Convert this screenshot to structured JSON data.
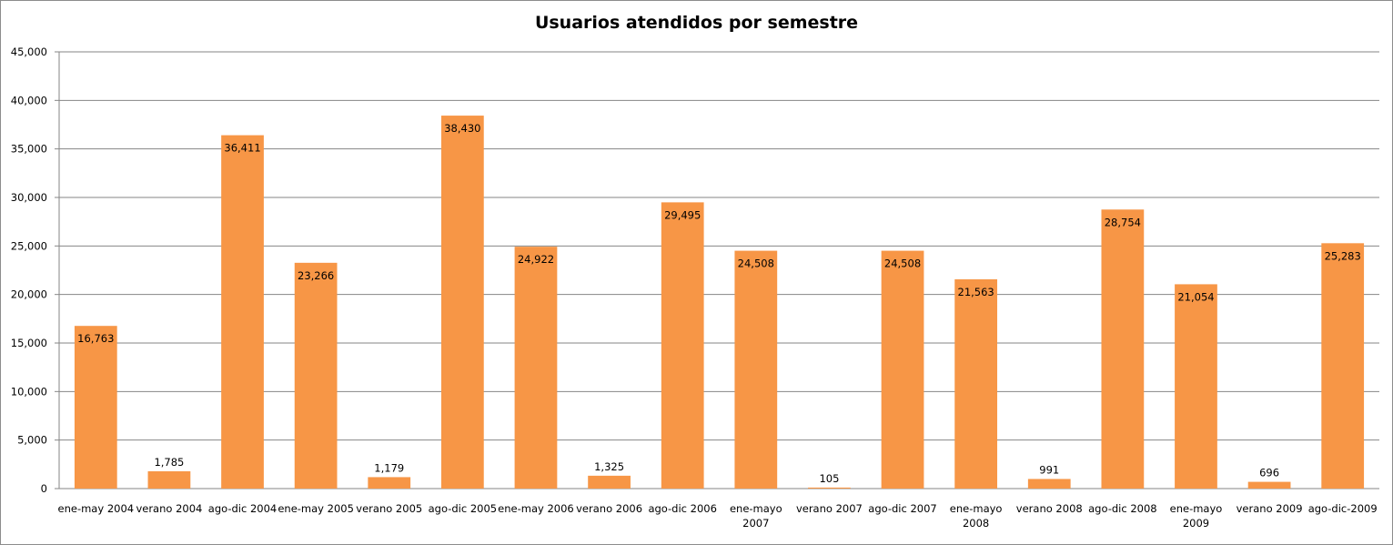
{
  "chart_data": {
    "type": "bar",
    "title": "Usuarios atendidos por semestre",
    "xlabel": "",
    "ylabel": "",
    "ylim": [
      0,
      45000
    ],
    "ytick_step": 5000,
    "ytick_labels": [
      "0",
      "5,000",
      "10,000",
      "15,000",
      "20,000",
      "25,000",
      "30,000",
      "35,000",
      "40,000",
      "45,000"
    ],
    "grid": true,
    "legend": "none",
    "bar_color": "#f79646",
    "categories": [
      [
        "ene-may 2004"
      ],
      [
        "verano 2004"
      ],
      [
        "ago-dic 2004"
      ],
      [
        "ene-may 2005"
      ],
      [
        "verano 2005"
      ],
      [
        "ago-dic 2005"
      ],
      [
        "ene-may 2006"
      ],
      [
        "verano 2006"
      ],
      [
        "ago-dic 2006"
      ],
      [
        "ene-mayo",
        "2007"
      ],
      [
        "verano 2007"
      ],
      [
        "ago-dic 2007"
      ],
      [
        "ene-mayo",
        "2008"
      ],
      [
        "verano 2008"
      ],
      [
        "ago-dic 2008"
      ],
      [
        "ene-mayo",
        "2009"
      ],
      [
        "verano 2009"
      ],
      [
        "ago-dic-2009"
      ]
    ],
    "values": [
      16763,
      1785,
      36411,
      23266,
      1179,
      38430,
      24922,
      1325,
      29495,
      24508,
      105,
      24508,
      21563,
      991,
      28754,
      21054,
      696,
      25283
    ],
    "data_labels": [
      "16,763",
      "1,785",
      "36,411",
      "23,266",
      "1,179",
      "38,430",
      "24,922",
      "1,325",
      "29,495",
      "24,508",
      "105",
      "24,508",
      "21,563",
      "991",
      "28,754",
      "21,054",
      "696",
      "25,283"
    ]
  }
}
